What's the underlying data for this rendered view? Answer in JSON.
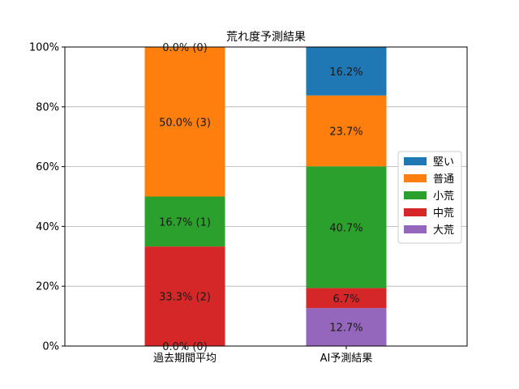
{
  "chart_data": {
    "type": "bar",
    "stacked": true,
    "percent": true,
    "title": "荒れ度予測結果",
    "xlabel": "",
    "ylabel": "",
    "ylim": [
      0,
      100
    ],
    "y_ticks": [
      "0%",
      "20%",
      "40%",
      "60%",
      "80%",
      "100%"
    ],
    "y_tick_values": [
      0,
      20,
      40,
      60,
      80,
      100
    ],
    "grid": "horizontal",
    "legend_position": "right",
    "categories": [
      "過去期間平均",
      "AI予測結果"
    ],
    "series": [
      {
        "name": "大荒",
        "color": "#9467bd",
        "values": [
          0.0,
          12.7
        ],
        "labels": [
          "0.0% (0)",
          "12.7%"
        ]
      },
      {
        "name": "中荒",
        "color": "#d62728",
        "values": [
          33.3,
          6.7
        ],
        "labels": [
          "33.3% (2)",
          "6.7%"
        ]
      },
      {
        "name": "小荒",
        "color": "#2ca02c",
        "values": [
          16.7,
          40.7
        ],
        "labels": [
          "16.7% (1)",
          "40.7%"
        ]
      },
      {
        "name": "普通",
        "color": "#ff7f0e",
        "values": [
          50.0,
          23.7
        ],
        "labels": [
          "50.0% (3)",
          "23.7%"
        ]
      },
      {
        "name": "堅い",
        "color": "#1f77b4",
        "values": [
          0.0,
          16.2
        ],
        "labels": [
          "0.0% (0)",
          "16.2%"
        ]
      }
    ],
    "legend_order": [
      "堅い",
      "普通",
      "小荒",
      "中荒",
      "大荒"
    ]
  }
}
